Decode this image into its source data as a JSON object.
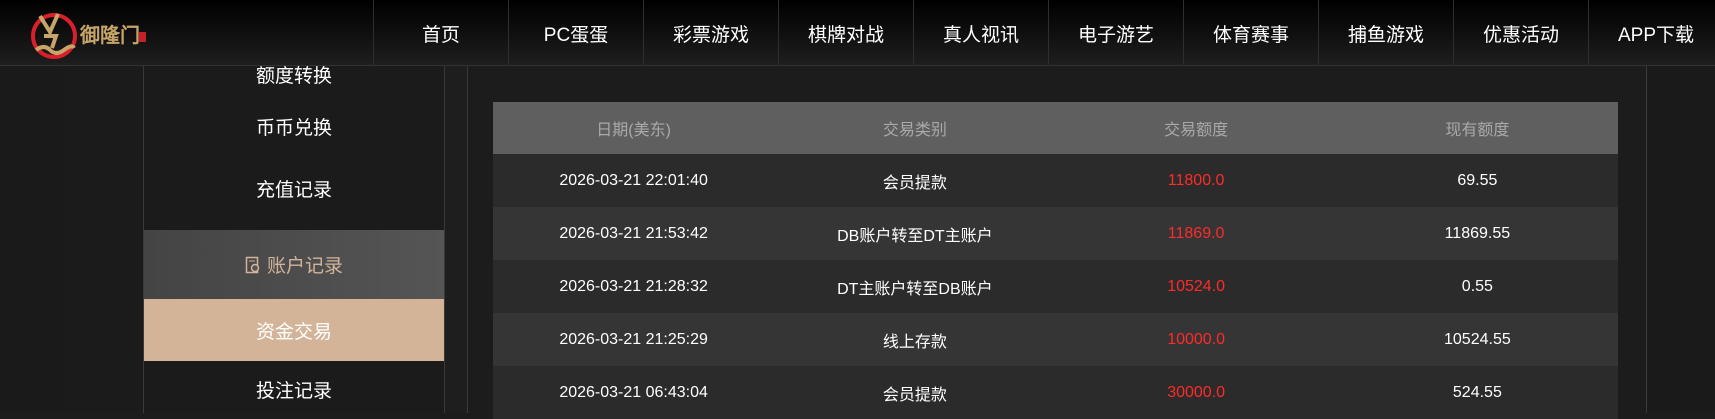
{
  "brand": {
    "name": "御隆门",
    "accent": "#d3b499",
    "red": "#ff2a2a"
  },
  "nav": [
    "首页",
    "PC蛋蛋",
    "彩票游戏",
    "棋牌对战",
    "真人视讯",
    "电子游艺",
    "体育赛事",
    "捕鱼游戏",
    "优惠活动",
    "APP下载"
  ],
  "sidebar": {
    "items": [
      "额度转换",
      "币币兑换",
      "充值记录"
    ],
    "group": {
      "label": "账户记录",
      "icon": "record-icon"
    },
    "active": "资金交易",
    "after": "投注记录"
  },
  "table": {
    "headers": [
      "日期(美东)",
      "交易类别",
      "交易额度",
      "现有额度"
    ],
    "rows": [
      [
        "2026-03-21 22:01:40",
        "会员提款",
        "11800.0",
        "69.55"
      ],
      [
        "2026-03-21 21:53:42",
        "DB账户转至DT主账户",
        "11869.0",
        "11869.55"
      ],
      [
        "2026-03-21 21:28:32",
        "DT主账户转至DB账户",
        "10524.0",
        "0.55"
      ],
      [
        "2026-03-21 21:25:29",
        "线上存款",
        "10000.0",
        "10524.55"
      ],
      [
        "2026-03-21 06:43:04",
        "会员提款",
        "30000.0",
        "524.55"
      ]
    ]
  }
}
